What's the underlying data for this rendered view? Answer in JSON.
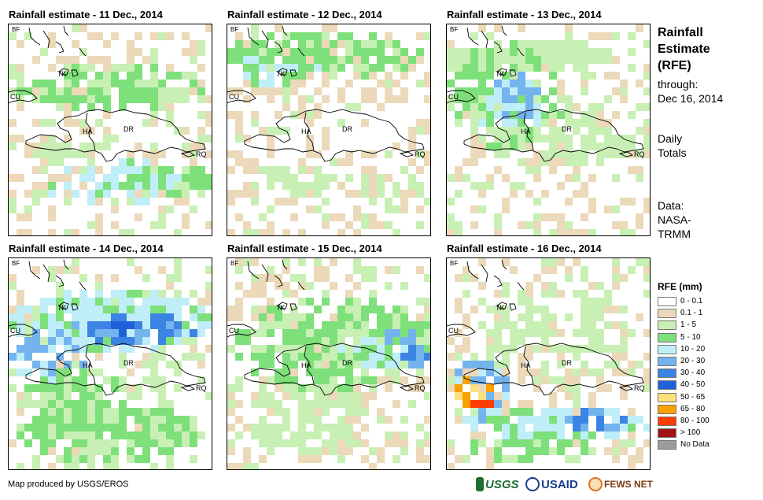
{
  "panels": [
    {
      "title": "Rainfall estimate - 11 Dec., 2014",
      "day": 11
    },
    {
      "title": "Rainfall estimate - 12 Dec., 2014",
      "day": 12
    },
    {
      "title": "Rainfall estimate - 13 Dec., 2014",
      "day": 13
    },
    {
      "title": "Rainfall estimate - 14 Dec., 2014",
      "day": 14
    },
    {
      "title": "Rainfall estimate - 15 Dec., 2014",
      "day": 15
    },
    {
      "title": "Rainfall estimate - 16 Dec., 2014",
      "day": 16
    }
  ],
  "map_labels": {
    "bf": "BF",
    "tk": "TK",
    "cu": "CU",
    "ha": "HA",
    "dr": "DR",
    "rq": "RQ"
  },
  "sidebar": {
    "title_line1": "Rainfall",
    "title_line2": "Estimate",
    "title_line3": "(RFE)",
    "through_label": "through:",
    "through_date": "Dec 16, 2014",
    "totals_line1": "Daily",
    "totals_line2": "Totals",
    "data_line1": "Data:",
    "data_line2": "NASA-",
    "data_line3": "TRMM"
  },
  "legend": {
    "title": "RFE (mm)",
    "items": [
      {
        "label": "0 - 0.1",
        "color": "#ffffff"
      },
      {
        "label": "0.1 - 1",
        "color": "#ebd9b9"
      },
      {
        "label": "1 - 5",
        "color": "#c8f0b4"
      },
      {
        "label": "5 - 10",
        "color": "#7ee07a"
      },
      {
        "label": "10 - 20",
        "color": "#bfeef8"
      },
      {
        "label": "20 - 30",
        "color": "#74b4ee"
      },
      {
        "label": "30 - 40",
        "color": "#3c84e4"
      },
      {
        "label": "40 - 50",
        "color": "#2060d8"
      },
      {
        "label": "50 - 65",
        "color": "#fce07c"
      },
      {
        "label": "65 - 80",
        "color": "#fca000"
      },
      {
        "label": "80 - 100",
        "color": "#fc3c00"
      },
      {
        "label": "> 100",
        "color": "#a01414"
      },
      {
        "label": "No Data",
        "color": "#9c9c9c"
      }
    ]
  },
  "footer": {
    "credit": "Map produced by USGS/EROS",
    "logo_usgs": "USGS",
    "logo_usaid": "USAID",
    "logo_fews": "FEWS NET"
  }
}
